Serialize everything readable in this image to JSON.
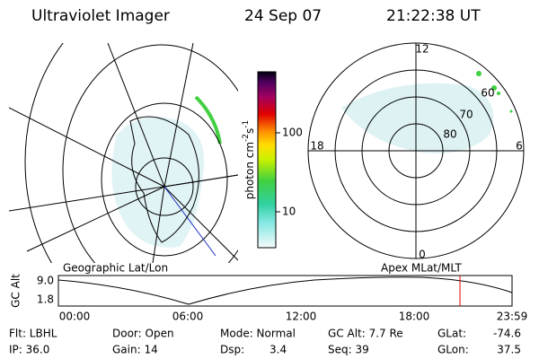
{
  "header": {
    "title": "Ultraviolet Imager",
    "date": "24 Sep 07",
    "time": "21:22:38 UT"
  },
  "colorbar": {
    "label": [
      "photon cm",
      "-2",
      "s",
      "-1"
    ],
    "ticks": [
      "100",
      "10"
    ]
  },
  "polar_plot": {
    "mlt_labels": [
      "12",
      "18",
      "6",
      "0"
    ],
    "mlat_labels": [
      "60",
      "70",
      "80"
    ]
  },
  "map_titles": [
    "Geographic Lat/Lon",
    "Apex MLat/MLT"
  ],
  "timeline": {
    "ylabel": "GC Alt",
    "yticks": [
      "9.0",
      "1.8"
    ],
    "xticks": [
      "00:00",
      "06:00",
      "12:00",
      "18:00",
      "23:59"
    ]
  },
  "footer": {
    "rows": [
      [
        "Flt: LBHL",
        "Door: Open",
        "Mode: Normal",
        "GC Alt: 7.7 Re",
        "GLat:",
        "-74.6"
      ],
      [
        "IP: 36.0",
        "Gain: 14",
        "Dsp:",
        "3.4",
        "Seq: 39",
        "GLon:",
        "37.5"
      ]
    ]
  }
}
